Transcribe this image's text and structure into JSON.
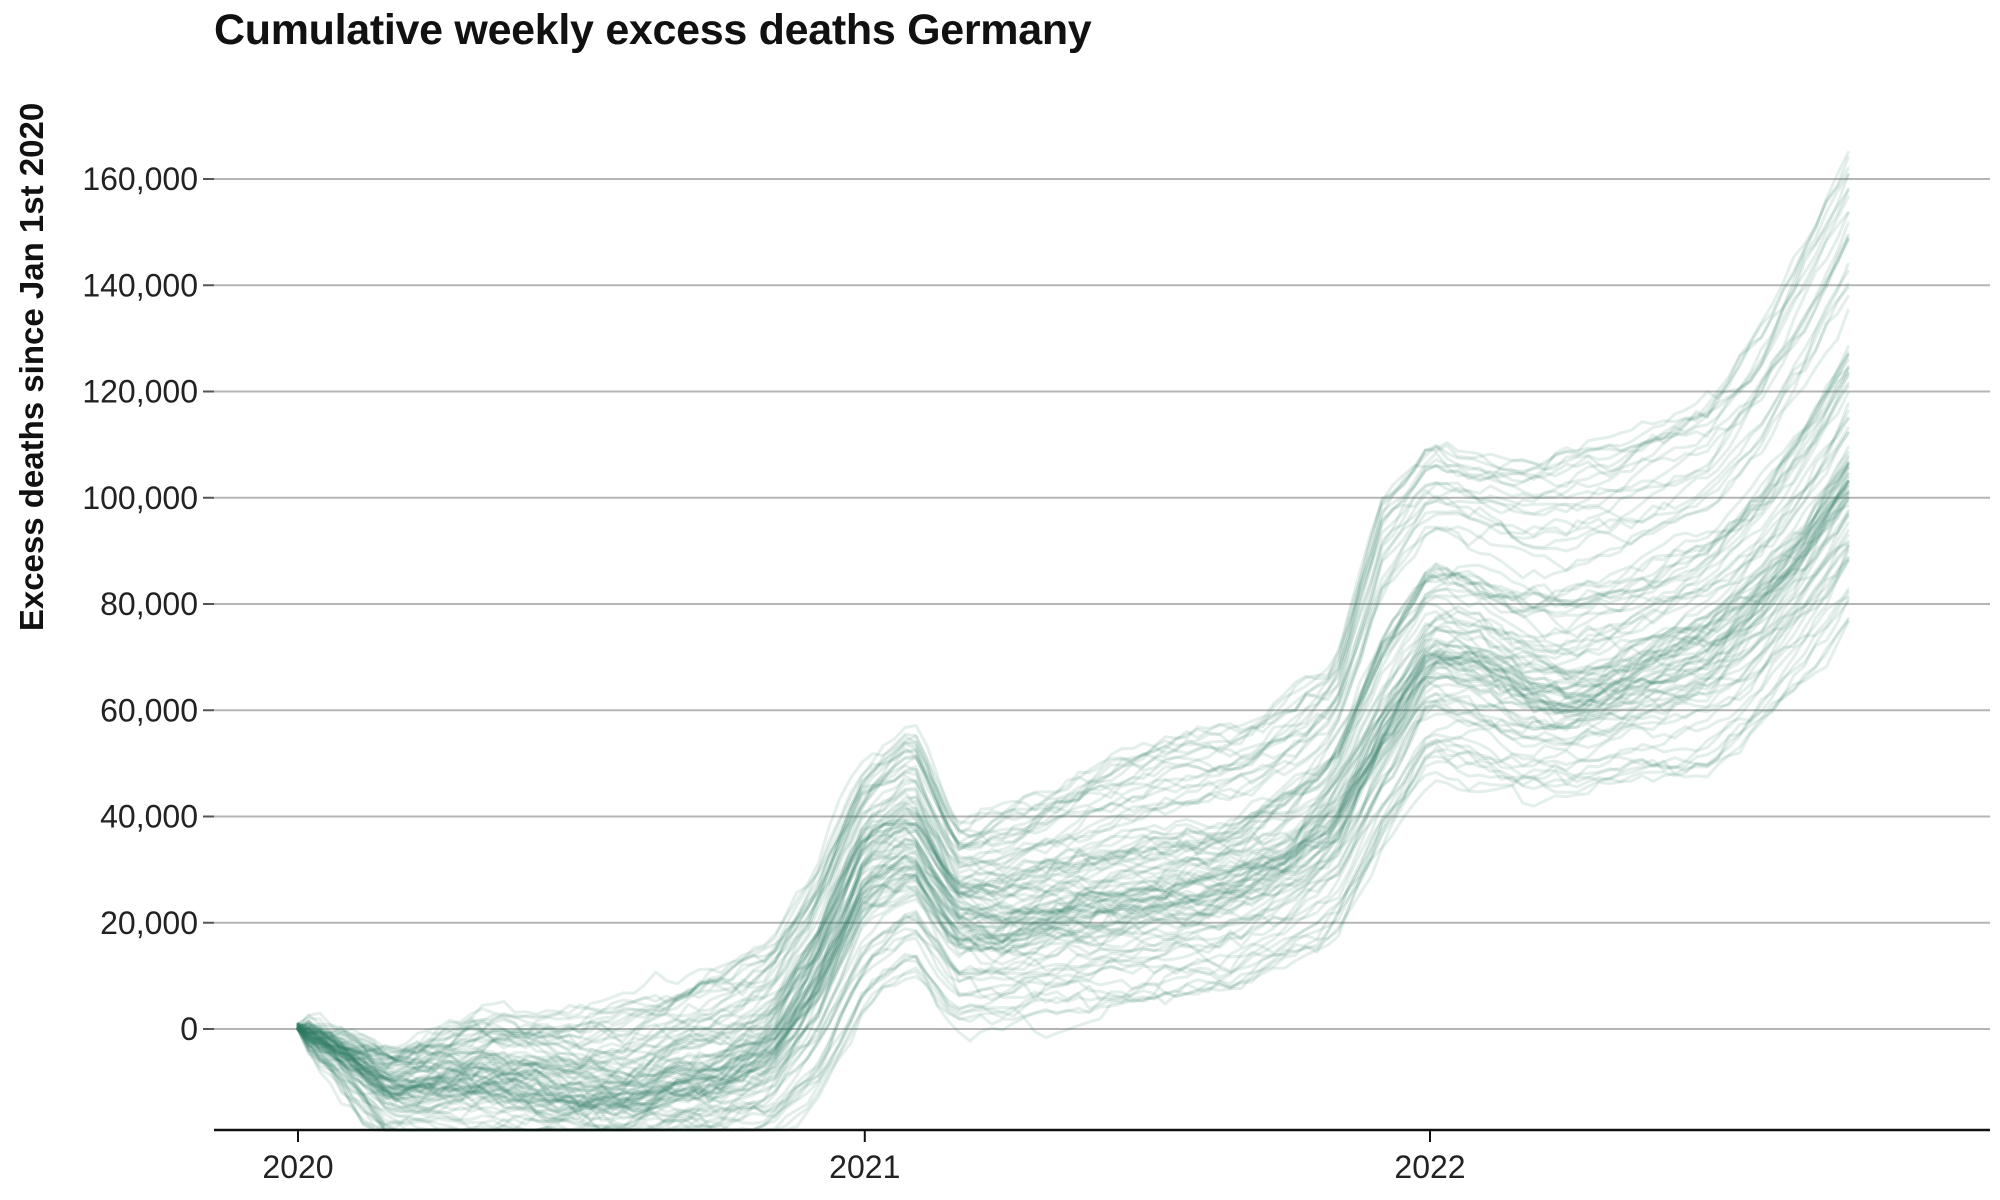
{
  "chart_data": {
    "type": "line",
    "title": "Cumulative weekly excess deaths Germany",
    "xlabel": "",
    "ylabel": "Excess deaths since Jan 1st 2020",
    "x_tick_labels": [
      "2020",
      "2021",
      "2022"
    ],
    "x_range": [
      "2020-01-01",
      "2022-10-01"
    ],
    "y_ticks": [
      0,
      20000,
      40000,
      60000,
      80000,
      100000,
      120000,
      140000,
      160000
    ],
    "y_tick_labels": [
      "0",
      "20,000",
      "40,000",
      "60,000",
      "80,000",
      "100,000",
      "120,000",
      "140,000",
      "160,000"
    ],
    "ylim": [
      -19000,
      168000
    ],
    "grid": true,
    "legend": "none",
    "line_color": "#2e7d65",
    "series_count": 100,
    "series_median": {
      "x": [
        "2020-01-01",
        "2020-02-01",
        "2020-03-01",
        "2020-04-01",
        "2020-05-01",
        "2020-06-01",
        "2020-07-01",
        "2020-08-01",
        "2020-09-01",
        "2020-10-01",
        "2020-11-01",
        "2020-12-01",
        "2021-01-01",
        "2021-02-01",
        "2021-03-01",
        "2021-04-01",
        "2021-05-01",
        "2021-06-01",
        "2021-07-01",
        "2021-08-01",
        "2021-09-01",
        "2021-10-01",
        "2021-11-01",
        "2021-12-01",
        "2022-01-01",
        "2022-02-01",
        "2022-03-01",
        "2022-04-01",
        "2022-05-01",
        "2022-06-01",
        "2022-07-01",
        "2022-08-01",
        "2022-09-01",
        "2022-10-01"
      ],
      "y": [
        0,
        -4000,
        -10000,
        -9000,
        -8000,
        -9500,
        -11000,
        -12000,
        -8000,
        -7000,
        -2000,
        12000,
        33000,
        38000,
        25000,
        23000,
        25000,
        27000,
        28000,
        29500,
        31500,
        35000,
        44000,
        60000,
        75000,
        73000,
        69000,
        67000,
        70000,
        74000,
        78000,
        86000,
        96000,
        110000
      ]
    },
    "series_low_envelope": {
      "x": [
        "2020-01-01",
        "2020-03-01",
        "2020-05-01",
        "2020-07-01",
        "2020-09-01",
        "2020-11-01",
        "2020-12-01",
        "2021-01-01",
        "2021-02-01",
        "2021-03-01",
        "2021-05-01",
        "2021-07-01",
        "2021-09-01",
        "2021-11-01",
        "2021-12-01",
        "2022-01-01",
        "2022-03-01",
        "2022-05-01",
        "2022-07-01",
        "2022-08-01",
        "2022-10-01"
      ],
      "y": [
        0,
        -22000,
        -25000,
        -24000,
        -22000,
        -20000,
        -12000,
        5000,
        12000,
        1000,
        3000,
        6000,
        9000,
        18000,
        35000,
        50000,
        45000,
        48000,
        50000,
        58000,
        80000
      ]
    },
    "series_high_envelope": {
      "x": [
        "2020-01-01",
        "2020-03-01",
        "2020-05-01",
        "2020-07-01",
        "2020-09-01",
        "2020-11-01",
        "2020-12-01",
        "2021-01-01",
        "2021-02-01",
        "2021-03-01",
        "2021-05-01",
        "2021-07-01",
        "2021-09-01",
        "2021-11-01",
        "2021-12-01",
        "2022-01-01",
        "2022-03-01",
        "2022-05-01",
        "2022-07-01",
        "2022-08-01",
        "2022-10-01"
      ],
      "y": [
        1000,
        -5000,
        2000,
        2000,
        6000,
        14000,
        28000,
        48000,
        56000,
        36000,
        44000,
        52000,
        56000,
        68000,
        100000,
        111000,
        107000,
        110000,
        118000,
        130000,
        165000
      ]
    }
  }
}
